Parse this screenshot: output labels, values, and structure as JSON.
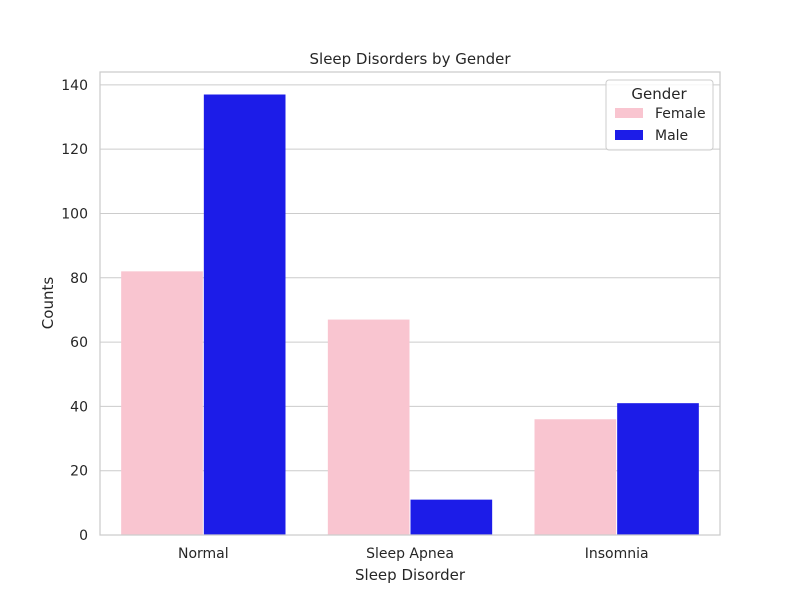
{
  "chart_data": {
    "type": "bar",
    "title": "Sleep Disorders by Gender",
    "xlabel": "Sleep Disorder",
    "ylabel": "Counts",
    "categories": [
      "Normal",
      "Sleep Apnea",
      "Insomnia"
    ],
    "series": [
      {
        "name": "Female",
        "values": [
          82,
          67,
          36
        ],
        "color": "#f9c5d0"
      },
      {
        "name": "Male",
        "values": [
          137,
          11,
          41
        ],
        "color": "#1c1ce8"
      }
    ],
    "ylim": [
      0,
      144
    ],
    "yticks": [
      0,
      20,
      40,
      60,
      80,
      100,
      120,
      140
    ],
    "grid": "horizontal",
    "legend": {
      "title": "Gender",
      "placement": "top-right"
    }
  }
}
